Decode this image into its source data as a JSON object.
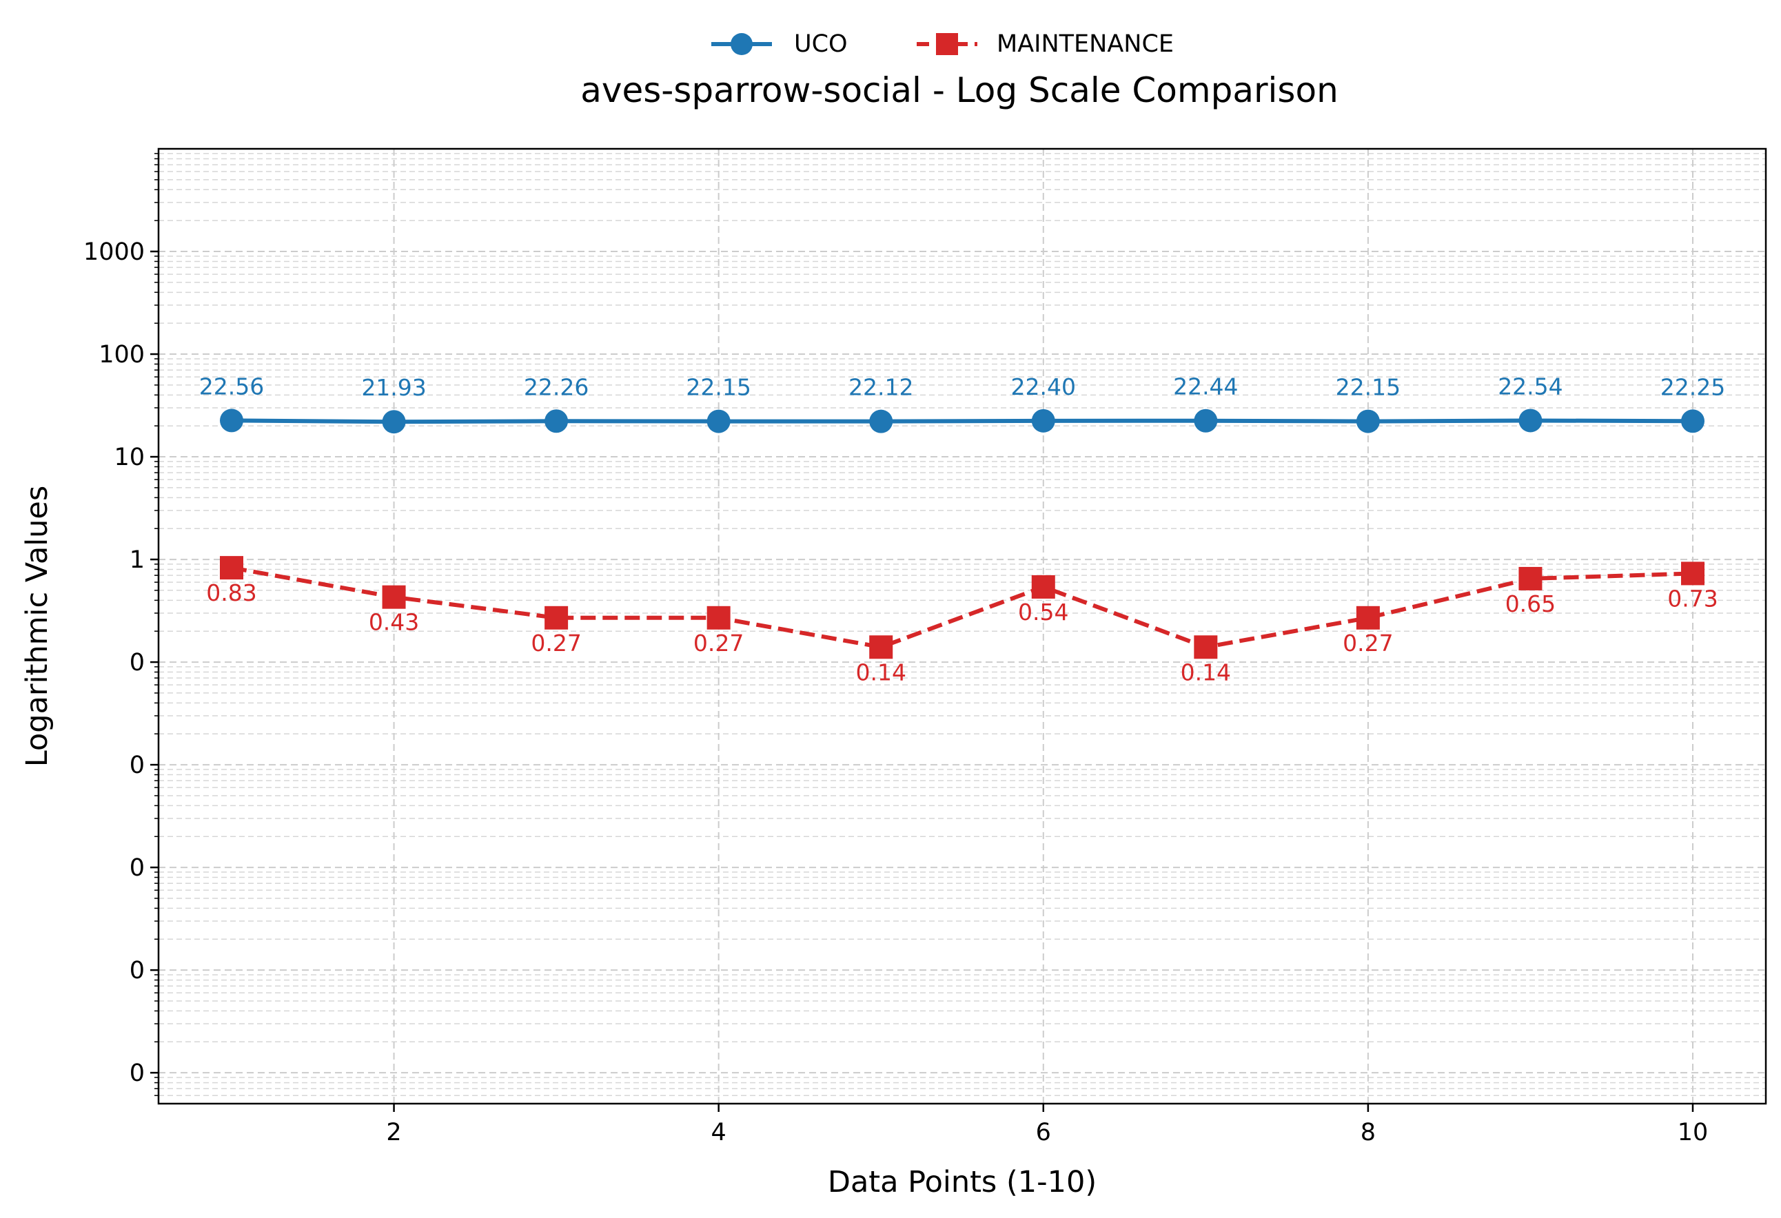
{
  "chart_data": {
    "type": "line",
    "title": "aves-sparrow-social - Log Scale Comparison",
    "xlabel": "Data Points (1-10)",
    "ylabel": "Logarithmic Values",
    "x": [
      1,
      2,
      3,
      4,
      5,
      6,
      7,
      8,
      9,
      10
    ],
    "xticks": [
      2,
      4,
      6,
      8,
      10
    ],
    "xlim": [
      0.55,
      10.45
    ],
    "y_scale": "log",
    "ylim": [
      5e-06,
      10000
    ],
    "yticks": [
      {
        "value": 1000,
        "label": "1000"
      },
      {
        "value": 100,
        "label": "100"
      },
      {
        "value": 10,
        "label": "10"
      },
      {
        "value": 1,
        "label": "1"
      },
      {
        "value": 0.1,
        "label": "0"
      },
      {
        "value": 0.01,
        "label": "0"
      },
      {
        "value": 0.001,
        "label": "0"
      },
      {
        "value": 0.0001,
        "label": "0"
      },
      {
        "value": 1e-05,
        "label": "0"
      }
    ],
    "grid": true,
    "legend_position": "top-center",
    "series": [
      {
        "name": "UCO",
        "color": "#1f77b4",
        "marker": "circle",
        "line_style": "solid",
        "values": [
          22.56,
          21.93,
          22.26,
          22.15,
          22.12,
          22.4,
          22.44,
          22.15,
          22.54,
          22.25
        ],
        "labels": [
          "22.56",
          "21.93",
          "22.26",
          "22.15",
          "22.12",
          "22.40",
          "22.44",
          "22.15",
          "22.54",
          "22.25"
        ]
      },
      {
        "name": "MAINTENANCE",
        "color": "#d62728",
        "marker": "square",
        "line_style": "dashed",
        "values": [
          0.83,
          0.43,
          0.27,
          0.27,
          0.14,
          0.54,
          0.14,
          0.27,
          0.65,
          0.73
        ],
        "labels": [
          "0.83",
          "0.43",
          "0.27",
          "0.27",
          "0.14",
          "0.54",
          "0.14",
          "0.27",
          "0.65",
          "0.73"
        ]
      }
    ]
  }
}
